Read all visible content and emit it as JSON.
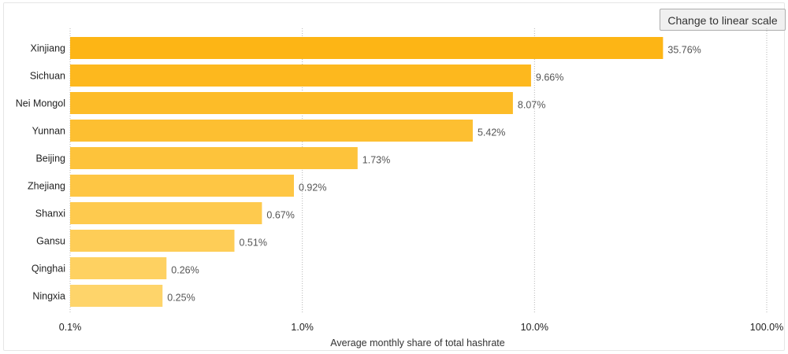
{
  "controls": {
    "scale_toggle_label": "Change to linear scale"
  },
  "chart_data": {
    "type": "bar",
    "orientation": "horizontal",
    "x_scale": "log",
    "categories": [
      "Xinjiang",
      "Sichuan",
      "Nei Mongol",
      "Yunnan",
      "Beijing",
      "Zhejiang",
      "Shanxi",
      "Gansu",
      "Qinghai",
      "Ningxia"
    ],
    "values": [
      35.76,
      9.66,
      8.07,
      5.42,
      1.73,
      0.92,
      0.67,
      0.51,
      0.26,
      0.25
    ],
    "value_labels": [
      "35.76%",
      "9.66%",
      "8.07%",
      "5.42%",
      "1.73%",
      "0.92%",
      "0.67%",
      "0.51%",
      "0.26%",
      "0.25%"
    ],
    "xlim": [
      0.1,
      100
    ],
    "xticks": [
      0.1,
      1,
      10,
      100
    ],
    "xtick_labels": [
      "0.1%",
      "1.0%",
      "10.0%",
      "100.0%"
    ],
    "xlabel": "Average monthly share of total hashrate",
    "ylabel": "",
    "title": "",
    "grid": "vertical dotted",
    "colors": {
      "bar_top": "#fdb515",
      "bar_bottom": "#fed46a",
      "text": "#222222",
      "label": "#555555",
      "grid": "#b5b5b5"
    }
  }
}
